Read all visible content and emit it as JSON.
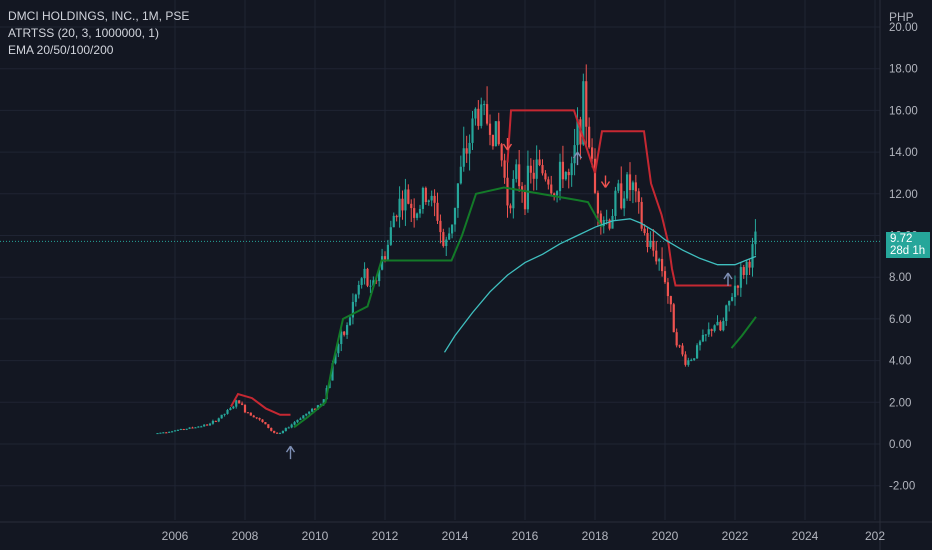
{
  "legend": {
    "title": "DMCI HOLDINGS, INC., 1M, PSE",
    "indicator1": "ATRTSS (20, 3, 1000000, 1)",
    "indicator2": "EMA 20/50/100/200"
  },
  "currency": "PHP",
  "last_price": {
    "value": "9.72",
    "countdown": "28d 1h"
  },
  "colors": {
    "background": "#131722",
    "up_candle": "#26a69a",
    "down_candle": "#ef5350",
    "stop_red": "#c62832",
    "stop_green": "#137a28",
    "ema": "#3fbfbf",
    "arrow": "#7e8fb4"
  },
  "chart_data": {
    "type": "candlestick",
    "x_ticks": [
      "2006",
      "2008",
      "2010",
      "2012",
      "2014",
      "2016",
      "2018",
      "2020",
      "2022",
      "2024",
      "202"
    ],
    "y_ticks": [
      "-2.00",
      "0.00",
      "2.00",
      "4.00",
      "6.00",
      "8.00",
      "10.00",
      "12.00",
      "14.00",
      "16.00",
      "18.00",
      "20.00"
    ],
    "ylim": [
      -3,
      20.5
    ],
    "xlim": [
      2004.6,
      2026.1
    ],
    "close_series": [
      [
        2005.5,
        0.52
      ],
      [
        2005.8,
        0.6
      ],
      [
        2006.2,
        0.7
      ],
      [
        2006.6,
        0.82
      ],
      [
        2007.0,
        0.95
      ],
      [
        2007.3,
        1.3
      ],
      [
        2007.6,
        1.7
      ],
      [
        2007.8,
        2.1
      ],
      [
        2008.0,
        1.6
      ],
      [
        2008.3,
        1.3
      ],
      [
        2008.6,
        0.9
      ],
      [
        2008.8,
        0.55
      ],
      [
        2009.0,
        0.5
      ],
      [
        2009.3,
        0.9
      ],
      [
        2009.6,
        1.3
      ],
      [
        2009.9,
        1.6
      ],
      [
        2010.2,
        2.0
      ],
      [
        2010.4,
        3.0
      ],
      [
        2010.6,
        4.6
      ],
      [
        2010.9,
        5.5
      ],
      [
        2011.1,
        6.8
      ],
      [
        2011.4,
        8.2
      ],
      [
        2011.6,
        7.2
      ],
      [
        2011.9,
        8.8
      ],
      [
        2012.1,
        9.6
      ],
      [
        2012.3,
        11.4
      ],
      [
        2012.6,
        11.8
      ],
      [
        2012.9,
        11.2
      ],
      [
        2013.2,
        12.0
      ],
      [
        2013.5,
        11.0
      ],
      [
        2013.7,
        9.2
      ],
      [
        2013.9,
        10.6
      ],
      [
        2014.1,
        12.6
      ],
      [
        2014.4,
        14.5
      ],
      [
        2014.6,
        16.0
      ],
      [
        2014.9,
        15.6
      ],
      [
        2015.1,
        15.2
      ],
      [
        2015.3,
        14.0
      ],
      [
        2015.5,
        11.8
      ],
      [
        2015.8,
        12.8
      ],
      [
        2016.0,
        12.2
      ],
      [
        2016.3,
        13.2
      ],
      [
        2016.6,
        13.0
      ],
      [
        2016.9,
        12.0
      ],
      [
        2017.1,
        13.4
      ],
      [
        2017.3,
        12.4
      ],
      [
        2017.5,
        15.0
      ],
      [
        2017.7,
        16.4
      ],
      [
        2017.9,
        13.6
      ],
      [
        2018.0,
        12.0
      ],
      [
        2018.2,
        11.0
      ],
      [
        2018.4,
        10.6
      ],
      [
        2018.6,
        11.8
      ],
      [
        2018.9,
        12.4
      ],
      [
        2019.1,
        12.2
      ],
      [
        2019.3,
        10.6
      ],
      [
        2019.5,
        9.6
      ],
      [
        2019.8,
        9.0
      ],
      [
        2020.0,
        8.0
      ],
      [
        2020.2,
        6.0
      ],
      [
        2020.4,
        4.6
      ],
      [
        2020.6,
        3.9
      ],
      [
        2020.8,
        4.2
      ],
      [
        2021.0,
        4.8
      ],
      [
        2021.2,
        5.2
      ],
      [
        2021.4,
        5.8
      ],
      [
        2021.6,
        5.4
      ],
      [
        2021.8,
        6.6
      ],
      [
        2022.0,
        7.6
      ],
      [
        2022.2,
        8.2
      ],
      [
        2022.4,
        8.8
      ],
      [
        2022.6,
        9.72
      ]
    ],
    "ema_series": [
      [
        2013.7,
        4.4
      ],
      [
        2014.0,
        5.2
      ],
      [
        2014.5,
        6.3
      ],
      [
        2015.0,
        7.3
      ],
      [
        2015.5,
        8.1
      ],
      [
        2016.0,
        8.7
      ],
      [
        2016.5,
        9.1
      ],
      [
        2017.0,
        9.6
      ],
      [
        2017.5,
        10.0
      ],
      [
        2018.0,
        10.4
      ],
      [
        2018.5,
        10.7
      ],
      [
        2019.0,
        10.8
      ],
      [
        2019.3,
        10.6
      ],
      [
        2019.7,
        10.2
      ],
      [
        2020.0,
        9.8
      ],
      [
        2020.5,
        9.3
      ],
      [
        2021.0,
        8.9
      ],
      [
        2021.5,
        8.6
      ],
      [
        2022.0,
        8.6
      ],
      [
        2022.3,
        8.8
      ],
      [
        2022.6,
        9.0
      ]
    ],
    "red_stop": [
      [
        2007.6,
        1.8
      ],
      [
        2007.8,
        2.4
      ],
      [
        2008.2,
        2.2
      ],
      [
        2008.6,
        1.7
      ],
      [
        2009.0,
        1.4
      ],
      [
        2009.3,
        1.4
      ],
      [
        2015.5,
        13.5
      ],
      [
        2015.6,
        16.0
      ],
      [
        2017.4,
        16.0
      ],
      [
        2018.0,
        13.0
      ],
      [
        2018.2,
        15.0
      ],
      [
        2019.4,
        15.0
      ],
      [
        2019.6,
        12.5
      ],
      [
        2019.9,
        11.0
      ],
      [
        2020.1,
        9.6
      ],
      [
        2020.2,
        8.4
      ],
      [
        2020.3,
        7.6
      ],
      [
        2021.9,
        7.6
      ]
    ],
    "green_stop": [
      [
        2009.4,
        0.8
      ],
      [
        2009.8,
        1.3
      ],
      [
        2010.3,
        2.0
      ],
      [
        2010.5,
        3.8
      ],
      [
        2010.8,
        6.0
      ],
      [
        2011.5,
        6.6
      ],
      [
        2011.9,
        8.8
      ],
      [
        2013.9,
        8.8
      ],
      [
        2014.2,
        10.0
      ],
      [
        2014.6,
        12.0
      ],
      [
        2015.4,
        12.3
      ],
      [
        2017.5,
        11.7
      ],
      [
        2017.8,
        11.6
      ],
      [
        2018.2,
        10.4
      ],
      [
        2021.9,
        4.6
      ],
      [
        2022.2,
        5.2
      ],
      [
        2022.6,
        6.1
      ]
    ],
    "buy_arrows": [
      [
        2009.3,
        -0.1
      ],
      [
        2017.5,
        14.0
      ],
      [
        2021.8,
        8.2
      ]
    ],
    "sell_arrows": [
      [
        2015.5,
        14.1
      ],
      [
        2018.3,
        12.3
      ]
    ],
    "grid": true
  }
}
